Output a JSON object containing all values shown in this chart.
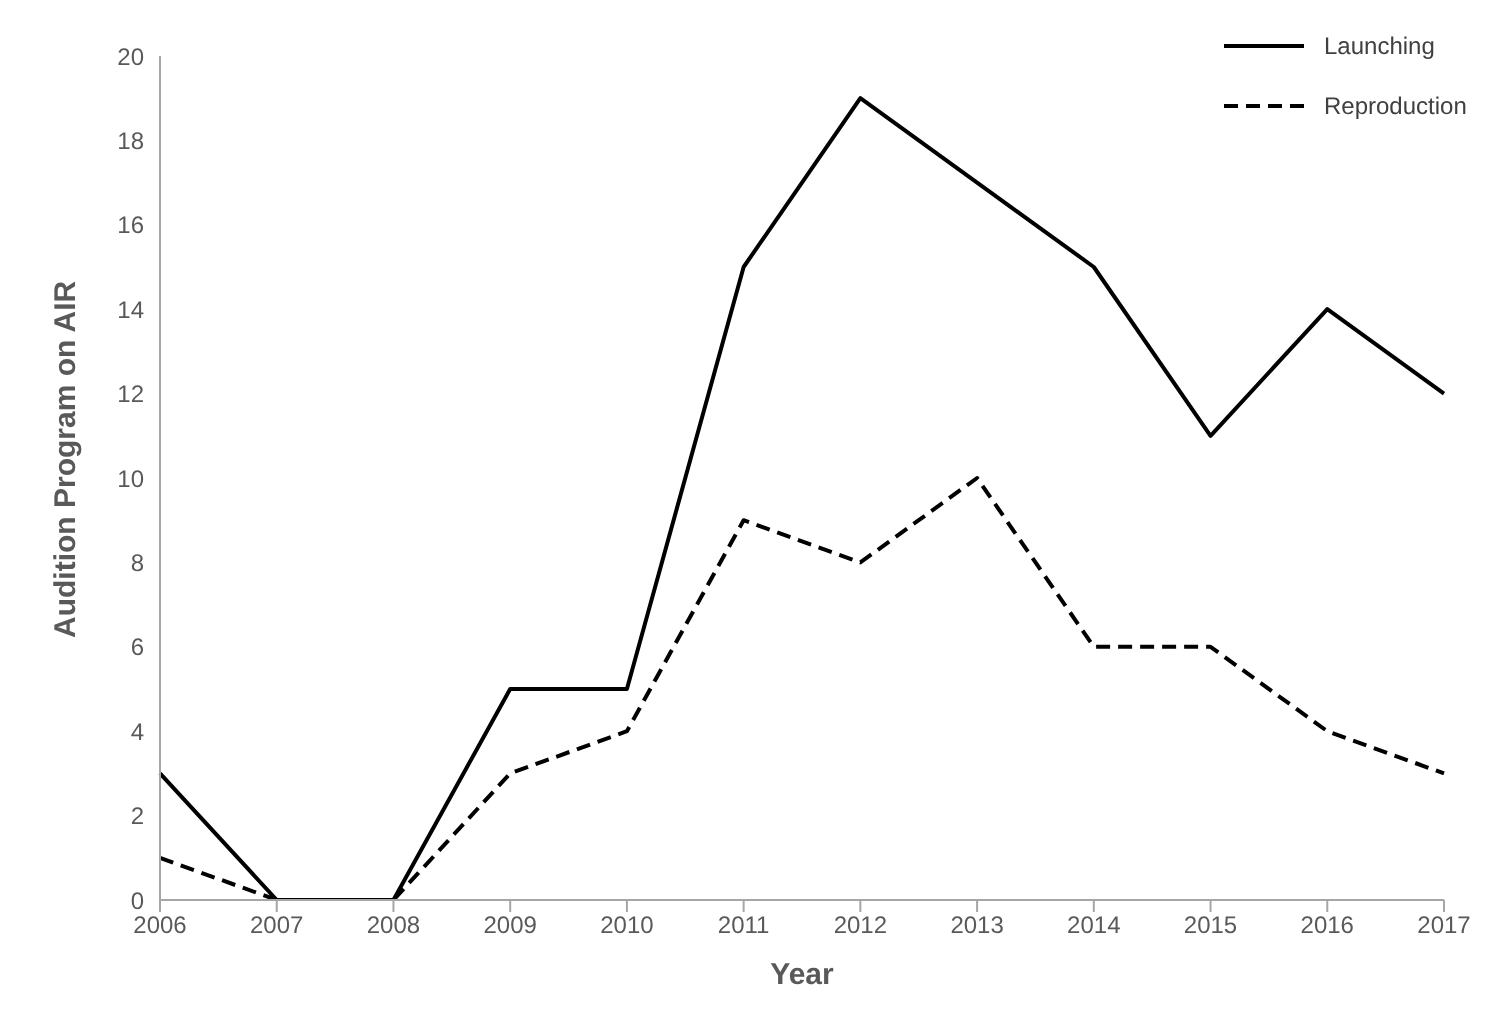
{
  "chart_data": {
    "type": "line",
    "xlabel": "Year",
    "ylabel": "Audition Program on AIR",
    "categories": [
      "2006",
      "2007",
      "2008",
      "2009",
      "2010",
      "2011",
      "2012",
      "2013",
      "2014",
      "2015",
      "2016",
      "2017"
    ],
    "series": [
      {
        "name": "Launching",
        "color": "#000000",
        "line_style": "solid",
        "values": [
          3,
          0,
          0,
          5,
          5,
          15,
          19,
          17,
          15,
          11,
          14,
          12
        ]
      },
      {
        "name": "Reproduction",
        "color": "#000000",
        "line_style": "dashed",
        "values": [
          1,
          0,
          0,
          3,
          4,
          9,
          8,
          10,
          6,
          6,
          4,
          3
        ]
      }
    ],
    "ylim": [
      0,
      20
    ],
    "yticks": [
      0,
      2,
      4,
      6,
      8,
      10,
      12,
      14,
      16,
      18,
      20
    ],
    "grid": false,
    "legend": "top right",
    "marker": "none"
  }
}
